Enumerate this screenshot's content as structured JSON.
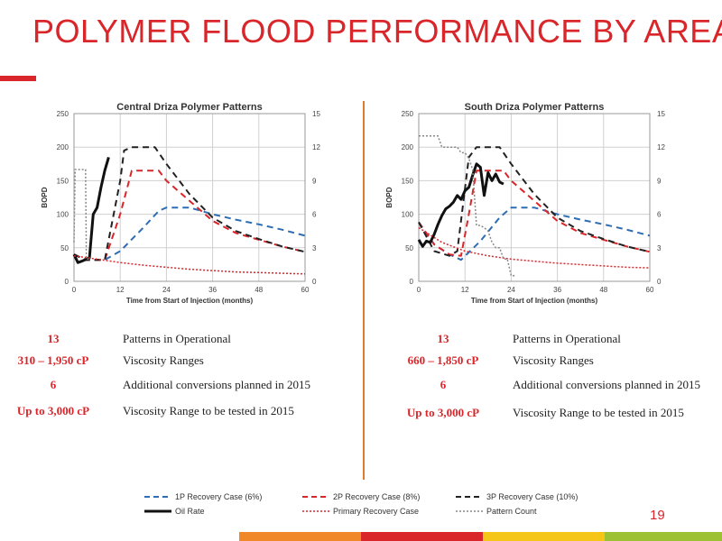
{
  "page": {
    "title": "POLYMER FLOOD PERFORMANCE BY AREA",
    "page_number": "19",
    "accent_color": "#d9262a",
    "divider_color": "#e07b2e"
  },
  "chart_data": [
    {
      "type": "line",
      "title": "Central Driza Polymer Patterns",
      "xlabel": "Time from Start of Injection (months)",
      "ylabel": "BOPD",
      "xlim": [
        0,
        60
      ],
      "ylim": [
        0,
        250
      ],
      "y2lim": [
        0,
        15
      ],
      "xticks": [
        "0",
        "12",
        "24",
        "36",
        "48",
        "60"
      ],
      "yticks": [
        "0",
        "50",
        "100",
        "150",
        "200",
        "250"
      ],
      "y2ticks": [
        "0",
        "3",
        "6",
        "9",
        "12",
        "15"
      ],
      "grid": true,
      "series": [
        {
          "key": "1p",
          "axis": "left",
          "color": "#2e6db3",
          "dash": "7,5",
          "width": 2,
          "x": [
            0,
            3,
            8,
            12,
            18,
            22,
            24,
            30,
            36,
            42,
            48,
            54,
            60
          ],
          "y": [
            40,
            32,
            32,
            45,
            80,
            105,
            110,
            110,
            100,
            92,
            85,
            77,
            68
          ]
        },
        {
          "key": "2p",
          "axis": "left",
          "color": "#d9262a",
          "dash": "7,5",
          "width": 2,
          "x": [
            0,
            3,
            8,
            12,
            15,
            18,
            22,
            24,
            30,
            36,
            42,
            48,
            54,
            60
          ],
          "y": [
            40,
            32,
            32,
            100,
            165,
            165,
            165,
            150,
            120,
            90,
            72,
            62,
            52,
            44
          ]
        },
        {
          "key": "3p",
          "axis": "left",
          "color": "#222222",
          "dash": "7,5",
          "width": 2,
          "x": [
            0,
            3,
            8,
            12,
            13,
            15,
            18,
            21,
            24,
            30,
            36,
            42,
            48,
            54,
            60
          ],
          "y": [
            40,
            32,
            32,
            150,
            195,
            200,
            200,
            200,
            175,
            130,
            95,
            75,
            63,
            52,
            44
          ]
        },
        {
          "key": "oil",
          "axis": "left",
          "color": "#111111",
          "dash": "",
          "width": 3,
          "x": [
            0,
            1,
            2,
            4,
            5,
            6,
            7,
            8,
            9
          ],
          "y": [
            40,
            28,
            30,
            35,
            100,
            110,
            140,
            165,
            185
          ]
        },
        {
          "key": "primary",
          "axis": "left",
          "color": "#d9262a",
          "dash": "2,2",
          "width": 1.5,
          "x": [
            0,
            6,
            12,
            18,
            24,
            30,
            36,
            42,
            48,
            54,
            60
          ],
          "y": [
            38,
            33,
            28,
            24,
            21,
            18,
            16,
            14,
            13,
            12,
            11
          ]
        },
        {
          "key": "pattern",
          "axis": "right",
          "color": "#888888",
          "dash": "2,2",
          "width": 1.5,
          "x": [
            0,
            0.3,
            1,
            3,
            3.2,
            4
          ],
          "y": [
            3.5,
            10,
            10,
            10,
            2,
            2
          ]
        }
      ]
    },
    {
      "type": "line",
      "title": "South Driza Polymer Patterns",
      "xlabel": "Time from Start of Injection (months)",
      "ylabel": "BOPD",
      "xlim": [
        0,
        60
      ],
      "ylim": [
        0,
        250
      ],
      "y2lim": [
        0,
        15
      ],
      "xticks": [
        "0",
        "12",
        "24",
        "36",
        "48",
        "60"
      ],
      "yticks": [
        "0",
        "50",
        "100",
        "150",
        "200",
        "250"
      ],
      "y2ticks": [
        "0",
        "3",
        "6",
        "9",
        "12",
        "15"
      ],
      "grid": true,
      "series": [
        {
          "key": "1p",
          "axis": "left",
          "color": "#2e6db3",
          "dash": "7,5",
          "width": 2,
          "x": [
            0,
            4,
            8,
            11,
            16,
            21,
            24,
            30,
            36,
            42,
            48,
            54,
            60
          ],
          "y": [
            88,
            55,
            40,
            32,
            60,
            95,
            110,
            110,
            100,
            92,
            85,
            77,
            68
          ]
        },
        {
          "key": "2p",
          "axis": "left",
          "color": "#d9262a",
          "dash": "7,5",
          "width": 2,
          "x": [
            0,
            4,
            8,
            11,
            13,
            15,
            18,
            22,
            24,
            30,
            36,
            42,
            48,
            54,
            60
          ],
          "y": [
            88,
            55,
            40,
            38,
            100,
            165,
            165,
            165,
            150,
            120,
            90,
            72,
            62,
            52,
            44
          ]
        },
        {
          "key": "3p",
          "axis": "left",
          "color": "#222222",
          "dash": "7,5",
          "width": 2,
          "x": [
            0,
            4,
            8,
            10,
            13,
            15,
            18,
            21,
            24,
            30,
            36,
            42,
            48,
            54,
            60
          ],
          "y": [
            88,
            45,
            38,
            45,
            185,
            200,
            200,
            200,
            175,
            130,
            95,
            75,
            63,
            52,
            44
          ]
        },
        {
          "key": "oil",
          "axis": "left",
          "color": "#111111",
          "dash": "",
          "width": 3,
          "x": [
            0,
            1,
            2,
            3,
            4,
            5,
            6,
            7,
            8,
            9,
            10,
            11,
            12,
            13,
            14,
            15,
            16,
            17,
            18,
            19,
            20,
            21,
            22
          ],
          "y": [
            62,
            52,
            60,
            58,
            70,
            85,
            98,
            108,
            112,
            118,
            128,
            122,
            135,
            140,
            158,
            175,
            170,
            128,
            162,
            150,
            160,
            148,
            145
          ]
        },
        {
          "key": "primary",
          "axis": "left",
          "color": "#d9262a",
          "dash": "2,2",
          "width": 1.5,
          "x": [
            0,
            6,
            12,
            18,
            24,
            30,
            36,
            42,
            48,
            54,
            60
          ],
          "y": [
            80,
            58,
            45,
            38,
            33,
            30,
            27,
            25,
            23,
            21,
            20
          ]
        },
        {
          "key": "pattern",
          "axis": "right",
          "color": "#888888",
          "dash": "2,2",
          "width": 1.5,
          "x": [
            0,
            1,
            5,
            6,
            10,
            11,
            12,
            13,
            14,
            15,
            16,
            17,
            18,
            19,
            20,
            21,
            22,
            23,
            24,
            25
          ],
          "y": [
            13,
            13,
            13,
            12,
            12,
            11.5,
            11.5,
            11,
            10,
            5,
            5,
            4.8,
            4.5,
            3.5,
            3,
            3,
            2,
            2,
            0.5,
            0.5
          ]
        }
      ]
    }
  ],
  "stats": {
    "central": [
      {
        "value": "13",
        "label": "Patterns in Operational"
      },
      {
        "value": "310 –  1,950 cP",
        "label": "Viscosity Ranges"
      },
      {
        "value": "6",
        "label": "Additional conversions planned in 2015"
      },
      {
        "value": "Up to 3,000 cP",
        "label": "Viscosity Range to be tested in 2015"
      }
    ],
    "south": [
      {
        "value": "13",
        "label": "Patterns in Operational"
      },
      {
        "value": "660 – 1,850 cP",
        "label": "Viscosity Ranges"
      },
      {
        "value": "6",
        "label": "Additional conversions planned in 2015"
      },
      {
        "value": "Up to 3,000 cP",
        "label": "Viscosity Range to be tested in 2015"
      }
    ]
  },
  "legend": {
    "p1": "1P Recovery Case (6%)",
    "p2": "2P Recovery Case (8%)",
    "p3": "3P Recovery Case (10%)",
    "oil": "Oil Rate",
    "primary": "Primary Recovery Case",
    "pattern": "Pattern Count"
  },
  "footer": {
    "colors": [
      "#f0882a",
      "#d9262a",
      "#f5c518",
      "#9cc234"
    ]
  }
}
